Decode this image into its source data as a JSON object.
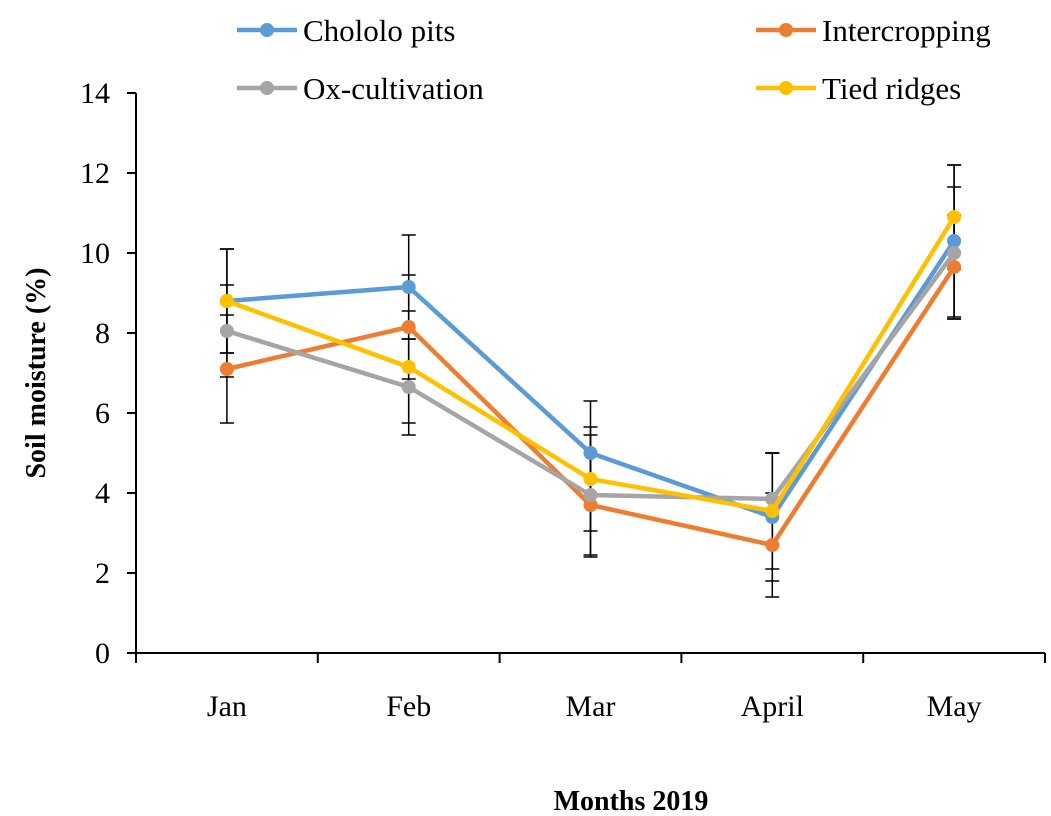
{
  "chart_data": {
    "type": "line",
    "title": "",
    "xlabel": "Months 2019",
    "ylabel": "Soil moisture (%)",
    "categories": [
      "Jan",
      "Feb",
      "Mar",
      "April",
      "May"
    ],
    "ylim": [
      0,
      14
    ],
    "yticks": [
      0,
      2,
      4,
      6,
      8,
      10,
      12,
      14
    ],
    "grid": false,
    "legend_position": "top",
    "error_bars": true,
    "series": [
      {
        "name": "Chololo pits",
        "color": "#5B9BD5",
        "values": [
          8.8,
          9.15,
          5.0,
          3.4,
          10.3
        ],
        "errors": [
          1.3,
          1.3,
          1.3,
          1.6,
          1.9
        ]
      },
      {
        "name": "Intercropping",
        "color": "#ED7D31",
        "values": [
          7.1,
          8.15,
          3.7,
          2.7,
          9.65
        ],
        "errors": [
          1.35,
          1.3,
          1.3,
          1.3,
          1.3
        ]
      },
      {
        "name": "Ox-cultivation",
        "color": "#A5A5A5",
        "values": [
          8.05,
          6.65,
          3.95,
          3.85,
          10.0
        ],
        "errors": [
          1.15,
          1.2,
          1.5,
          1.15,
          1.65
        ]
      },
      {
        "name": "Tied ridges",
        "color": "#FFC000",
        "values": [
          8.8,
          7.15,
          4.35,
          3.55,
          10.9
        ],
        "errors": [
          1.3,
          1.4,
          1.3,
          1.45,
          1.3
        ]
      }
    ]
  }
}
